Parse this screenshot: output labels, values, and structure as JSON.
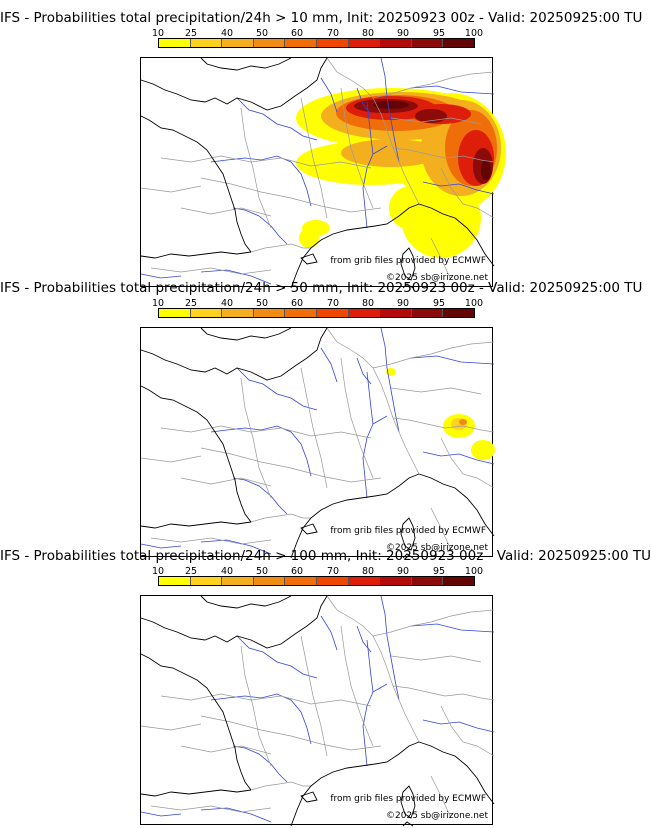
{
  "colors": {
    "scale": [
      "#ffff00",
      "#ffd21e",
      "#f4af1e",
      "#f08c14",
      "#f06e0a",
      "#f04600",
      "#dc1e0a",
      "#b40a0a",
      "#8c0a0a",
      "#640505"
    ],
    "coast": "#000000",
    "rivers": "#3344dd",
    "borders": "#999999"
  },
  "scale_labels": [
    "10",
    "25",
    "40",
    "50",
    "60",
    "70",
    "80",
    "90",
    "95",
    "100"
  ],
  "panels": [
    {
      "title": "IFS - Probabilities total precipitation/24h > 10 mm, Init: 20250923 00z - Valid: 20250925:00 TU",
      "source": "from grib files provided by ECMWF",
      "copyright": "©2025 sb@irizone.net",
      "coverage": "widespread"
    },
    {
      "title": "IFS - Probabilities total precipitation/24h > 50 mm, Init: 20250923 00z - Valid: 20250925:00 TU",
      "source": "from grib files provided by ECMWF",
      "copyright": "©2025 sb@irizone.net",
      "coverage": "localized"
    },
    {
      "title": "IFS - Probabilities total precipitation/24h > 100 mm, Init: 20250923 00z - Valid: 20250925:00 TU",
      "source": "from grib files provided by ECMWF",
      "copyright": "©2025 sb@irizone.net",
      "coverage": "none"
    }
  ]
}
